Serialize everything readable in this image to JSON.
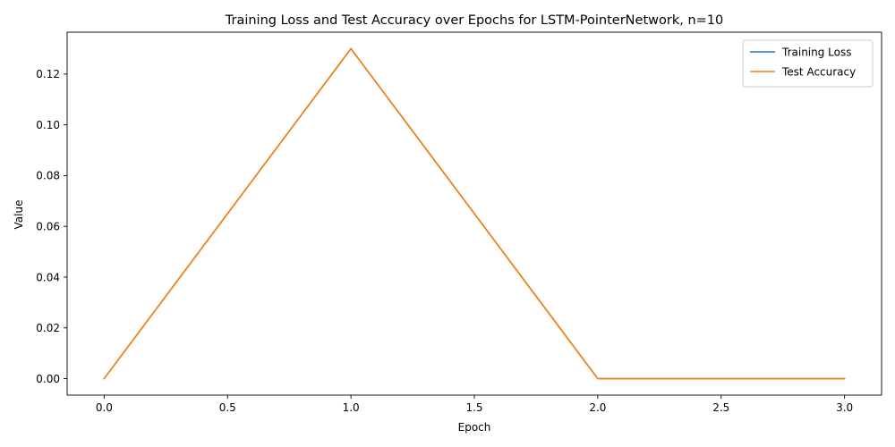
{
  "chart_data": {
    "type": "line",
    "title": "Training Loss and Test Accuracy over Epochs for LSTM-PointerNetwork, n=10",
    "xlabel": "Epoch",
    "ylabel": "Value",
    "x": [
      0,
      1,
      2,
      3
    ],
    "series": [
      {
        "name": "Training Loss",
        "color": "#1f77b4",
        "values": [
          0,
          0.13,
          0,
          0
        ]
      },
      {
        "name": "Test Accuracy",
        "color": "#ff7f0e",
        "values": [
          0,
          0.13,
          0,
          0
        ]
      }
    ],
    "xlim": [
      -0.15,
      3.15
    ],
    "ylim": [
      -0.0065,
      0.1365
    ],
    "xticks": [
      "0.0",
      "0.5",
      "1.0",
      "1.5",
      "2.0",
      "2.5",
      "3.0"
    ],
    "yticks": [
      "0.00",
      "0.02",
      "0.04",
      "0.06",
      "0.08",
      "0.10",
      "0.12"
    ],
    "grid": false,
    "legend_position": "top-right"
  }
}
